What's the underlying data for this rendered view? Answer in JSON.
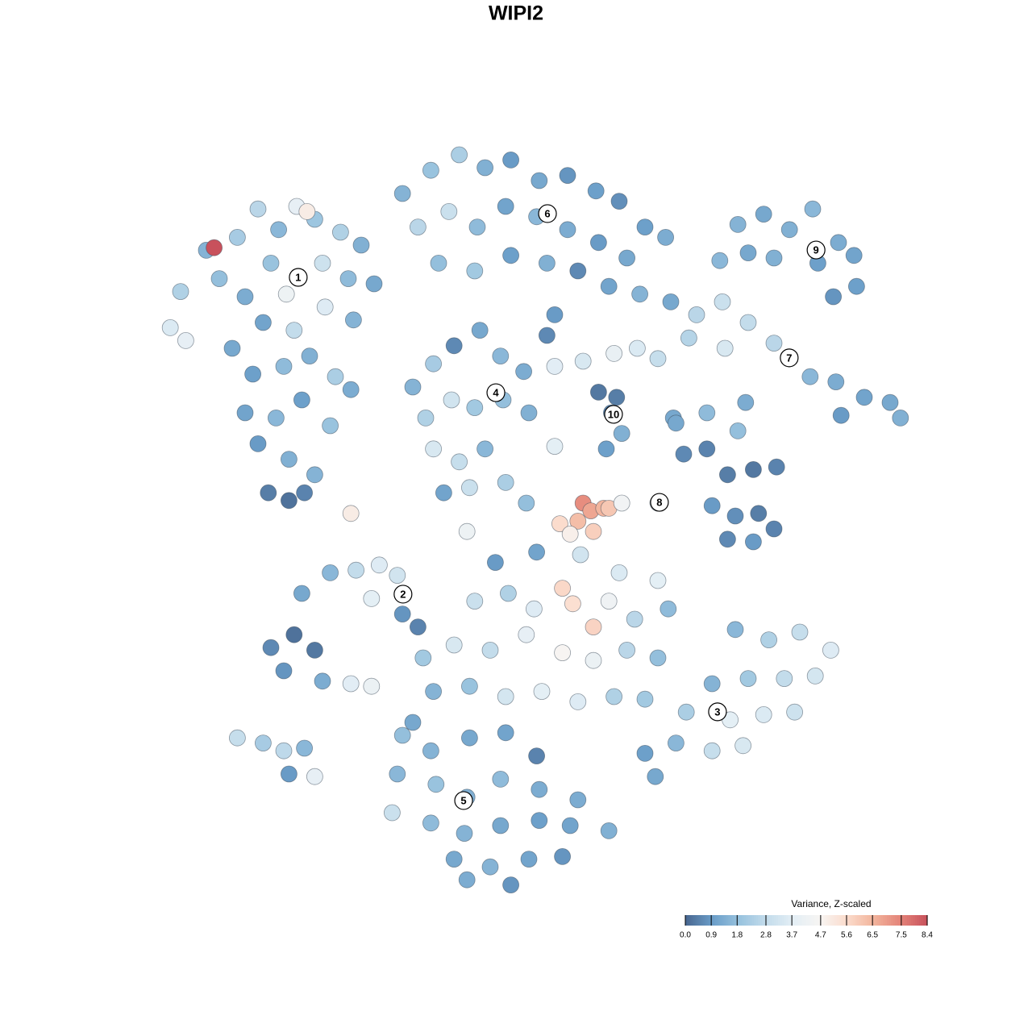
{
  "chart_data": {
    "type": "scatter",
    "title": "WIPI2",
    "xlim": [
      -15,
      15
    ],
    "ylim": [
      -15,
      15
    ],
    "x": [
      -13.4,
      -12.8,
      -13,
      -12,
      -11.5,
      -10.8,
      -10,
      -9.2,
      -8.5,
      -7.8,
      -6.8,
      -6,
      -9.5,
      -8.9,
      -7.5,
      -6.5,
      -5.5,
      -10.5,
      -9.8,
      -8.6,
      -7.4,
      -6.3,
      -11,
      -10.2,
      -9,
      -8,
      -7,
      -10.5,
      -9.3,
      -8.3,
      -7.2,
      -6.4,
      -10,
      -8.8,
      -7.8,
      -9.6,
      -8.8,
      -8.2,
      -11.7,
      -8.1,
      -4.4,
      -3.3,
      -2.2,
      -1.2,
      -0.2,
      0.9,
      2,
      3.1,
      4,
      5,
      5.8,
      -3.8,
      -2.6,
      -1.5,
      -0.4,
      0.8,
      2,
      3.2,
      4.3,
      -3,
      -1.6,
      -0.2,
      1.2,
      2.4,
      3.6,
      1.5,
      1.2,
      4.8,
      6,
      8.6,
      9.6,
      10.6,
      11.5,
      12.5,
      13.1,
      11.7,
      10,
      9,
      13.2,
      12.3,
      7.9,
      7,
      8,
      9,
      10,
      10.6,
      11.4,
      12.4,
      13.5,
      14.5,
      14.9,
      12.6,
      8.1,
      6.7,
      8.9,
      7.4,
      6.1,
      8.6,
      -4,
      -3.2,
      -2.4,
      -1.4,
      -0.6,
      0.3,
      -3.5,
      -2.5,
      -1.6,
      -0.5,
      0.5,
      -3.2,
      -2.2,
      -1.2,
      -0.4,
      -2.8,
      -1.8,
      1.5,
      2.6,
      3.8,
      4.7,
      5.5,
      3.2,
      3.9,
      3.7,
      4.1,
      3.5,
      6.2,
      6.5,
      7.4,
      8.2,
      9.2,
      10.1,
      7.6,
      8.5,
      9.4,
      10,
      8.2,
      9.2,
      5.5,
      2.6,
      2.9,
      3.4,
      2.4,
      3,
      1.7,
      2.1,
      3.6,
      4.1,
      -6.4,
      -1.9,
      1.5,
      0.4,
      -9.5,
      -8.6,
      -7.8,
      -9,
      -7.5,
      -8.3,
      -7.2,
      -6.2,
      -5.3,
      -4.6,
      -5.6,
      -4.4,
      -3.8,
      -6.4,
      -5.6,
      -10.8,
      -9.8,
      -9,
      -8.2,
      -8.8,
      -7.8,
      -0.8,
      0.8,
      2.5,
      4,
      5.5,
      1.8,
      2.2,
      3.6,
      -1.6,
      -0.3,
      0.7,
      3,
      4.6,
      5.9,
      -3.6,
      -2.4,
      -1,
      0.4,
      1.8,
      3,
      4.3,
      5.5,
      -3.2,
      -1.8,
      -0.4,
      1,
      2.4,
      3.8,
      5,
      -4,
      8.5,
      9.8,
      11,
      12.2,
      11.6,
      10.4,
      9,
      7.6,
      6.6,
      8.3,
      9.6,
      10.8,
      6.2,
      7.6,
      8.8,
      5,
      5.4,
      -4.4,
      -3.3,
      -1.8,
      -0.4,
      0.8,
      -4.6,
      -3.1,
      -1.9,
      -0.6,
      0.9,
      -4.8,
      -3.3,
      -2,
      -0.6,
      0.9,
      2.1,
      -2.4,
      -1,
      0.5,
      1.8,
      -1.9,
      -0.2,
      2.4,
      3.6
    ],
    "y": [
      7.3,
      6.8,
      8.7,
      10.3,
      9.2,
      10.8,
      11.9,
      11.1,
      12,
      11.5,
      11,
      10.5,
      9.8,
      8.6,
      9.8,
      9.2,
      9,
      8.5,
      7.5,
      7.2,
      8.1,
      7.6,
      6.5,
      5.5,
      5.8,
      6.2,
      5.4,
      4,
      3.8,
      4.5,
      3.5,
      4.9,
      2.8,
      2.2,
      1.6,
      0.9,
      0.6,
      0.9,
      10.4,
      11.8,
      12.5,
      13.4,
      14,
      13.5,
      13.8,
      13,
      13.2,
      12.6,
      12.2,
      11.2,
      10.8,
      11.2,
      11.8,
      11.2,
      12,
      11.6,
      11.1,
      10.6,
      10,
      9.8,
      9.5,
      10.1,
      9.8,
      9.5,
      8.9,
      7.8,
      7,
      8.6,
      8.3,
      11.3,
      11.7,
      11.1,
      11.9,
      10.6,
      10.1,
      9.8,
      10,
      10.2,
      8.9,
      8.5,
      9.9,
      7.8,
      8.3,
      7.5,
      6.7,
      6.1,
      5.4,
      5.2,
      4.6,
      4.4,
      3.8,
      3.9,
      6.5,
      6.9,
      4.4,
      4,
      3.8,
      3.3,
      5,
      5.9,
      6.6,
      7.2,
      6.2,
      5.6,
      3.8,
      4.5,
      4.2,
      4.5,
      4,
      2.6,
      2.1,
      2.6,
      1.3,
      0.9,
      1.1,
      5.8,
      6,
      6.3,
      6.5,
      6.1,
      4.8,
      4.6,
      4,
      3.2,
      2.6,
      3.6,
      2.4,
      2.6,
      1.6,
      1.8,
      1.9,
      0.4,
      0,
      0.1,
      -0.5,
      -0.9,
      -1,
      0.5,
      0.5,
      0.2,
      0.3,
      -0.2,
      -0.6,
      -0.3,
      -0.7,
      0.3,
      0.5,
      0.1,
      -0.6,
      2.7,
      0.5,
      -5.1,
      -4.6,
      -5.2,
      -6,
      -6.4,
      -3,
      -2.2,
      -2.1,
      -1.9,
      -2.3,
      -3.2,
      -3.8,
      -4.3,
      -6.5,
      -6.6,
      -8.6,
      -8.8,
      -9.1,
      -9,
      -10,
      -10.1,
      -1.8,
      -1.4,
      -1.5,
      -2.2,
      -2.5,
      -2.8,
      -3.4,
      -3.3,
      -3.3,
      -3,
      -3.6,
      -4.3,
      -4,
      -3.6,
      -5.5,
      -5,
      -5.2,
      -4.6,
      -5.3,
      -5.6,
      -5.2,
      -5.5,
      -6.8,
      -6.6,
      -7,
      -6.8,
      -7.2,
      -7,
      -7.1,
      -8,
      -4.4,
      -4.8,
      -4.5,
      -5.2,
      -6.2,
      -6.3,
      -6.3,
      -6.5,
      -7.6,
      -7.9,
      -7.7,
      -7.6,
      -8.8,
      -9.1,
      -8.9,
      -9.2,
      -10.1,
      -8.5,
      -9.1,
      -8.6,
      -8.4,
      -9.3,
      -10,
      -10.4,
      -10.9,
      -10.2,
      -10.6,
      -11.5,
      -11.9,
      -12.3,
      -12,
      -11.8,
      -12,
      -13.3,
      -13.6,
      -13.3,
      -13.2,
      -14.1,
      -14.3,
      -11,
      -12.2
    ],
    "values": [
      3.5,
      3.9,
      2.4,
      1.5,
      1.8,
      2.2,
      2.6,
      1.6,
      3.9,
      2,
      2.4,
      1.4,
      1.9,
      4.2,
      3.1,
      1.7,
      1.2,
      1.3,
      1.1,
      2.8,
      3.6,
      1.5,
      1.2,
      1,
      1.7,
      1.4,
      2.3,
      1.1,
      1.6,
      1,
      1.9,
      1.3,
      0.9,
      1.4,
      1.5,
      0.4,
      0.2,
      0.5,
      8.4,
      5,
      1.5,
      1.9,
      2.3,
      1.4,
      0.9,
      1.2,
      0.8,
      1,
      0.7,
      1,
      1.3,
      2.6,
      3,
      1.7,
      1.1,
      1.6,
      1.3,
      0.9,
      1.2,
      1.8,
      2.1,
      1,
      1.4,
      0.6,
      1.1,
      0.9,
      0.6,
      1.5,
      1.2,
      1.5,
      1.2,
      1.4,
      1.6,
      1.3,
      1.1,
      1,
      1.4,
      1.2,
      1,
      0.8,
      1.6,
      2.6,
      3,
      2.8,
      2.6,
      2.2,
      1.6,
      1.3,
      1.1,
      1.2,
      1.4,
      0.9,
      3.4,
      2.5,
      1.3,
      1.7,
      1.2,
      1.8,
      1.5,
      2.2,
      0.6,
      1.2,
      1.6,
      1.3,
      2.4,
      3.2,
      2.1,
      1.8,
      1.4,
      3.4,
      2.9,
      1.6,
      2.3,
      1.1,
      3,
      3.7,
      3.4,
      4,
      3.5,
      2.9,
      0.3,
      0.4,
      0.6,
      1.4,
      1,
      1.2,
      0.6,
      0.5,
      0.4,
      0.3,
      0.5,
      0.9,
      0.7,
      0.4,
      0.5,
      0.6,
      0.9,
      3.8,
      7.3,
      6.8,
      6.5,
      6.3,
      5.9,
      5.6,
      4.9,
      6.1,
      4.4,
      5,
      4.2,
      3.8,
      1.8,
      0.6,
      0.2,
      0.3,
      0.8,
      1.3,
      1.2,
      1.6,
      2.8,
      3.6,
      3.2,
      3.8,
      0.8,
      0.5,
      3.7,
      4.1,
      2.9,
      2.2,
      2.7,
      1.6,
      0.9,
      3.9,
      0.9,
      1.1,
      3.2,
      3.5,
      3.8,
      5.7,
      5.5,
      4.3,
      3,
      2.4,
      3.6,
      5.8,
      2.6,
      1.7,
      2.1,
      3.4,
      2.8,
      3.9,
      4.7,
      4.1,
      2.6,
      1.8,
      1.5,
      1.9,
      3.3,
      3.8,
      3.6,
      2.4,
      2.1,
      1.2,
      1.6,
      2.4,
      2.9,
      3.6,
      3.3,
      2.8,
      2.1,
      1.5,
      2.3,
      3.8,
      3.5,
      3.1,
      1.6,
      2.9,
      3.4,
      1,
      1.2,
      1.8,
      1.5,
      1.2,
      1.1,
      0.5,
      1.6,
      1.9,
      1.4,
      1.7,
      1.3,
      3,
      1.7,
      1.5,
      1.2,
      1,
      1.1,
      1.2,
      1.5,
      1.1,
      0.8,
      1.3,
      0.8,
      1.3,
      1.4
    ],
    "clusters": [
      {
        "label": "1",
        "x": -8.44,
        "y": 9.25
      },
      {
        "label": "2",
        "x": -4.38,
        "y": -3.03
      },
      {
        "label": "3",
        "x": 7.81,
        "y": -7.59
      },
      {
        "label": "4",
        "x": -0.78,
        "y": 4.78
      },
      {
        "label": "5",
        "x": -2.03,
        "y": -11.03
      },
      {
        "label": "6",
        "x": 1.22,
        "y": 11.72
      },
      {
        "label": "7",
        "x": 10.59,
        "y": 6.13
      },
      {
        "label": "8",
        "x": 5.56,
        "y": 0.53
      },
      {
        "label": "9",
        "x": 11.63,
        "y": 10.31
      },
      {
        "label": "10",
        "x": 3.78,
        "y": 3.94
      }
    ],
    "colorbar": {
      "title": "Variance, Z-scaled",
      "clim": [
        0,
        8.4
      ],
      "ticks": [
        {
          "value": 0,
          "label": "0.0"
        },
        0.9,
        1.8,
        2.8,
        3.7,
        4.7,
        5.6,
        6.5,
        7.5,
        8.4
      ],
      "colors": [
        "#48668f",
        "#6a9dc8",
        "#97c2de",
        "#c3dceb",
        "#e3eef5",
        "#f7f5f3",
        "#fbdccd",
        "#f2b49c",
        "#e48479",
        "#c8515c"
      ]
    }
  }
}
